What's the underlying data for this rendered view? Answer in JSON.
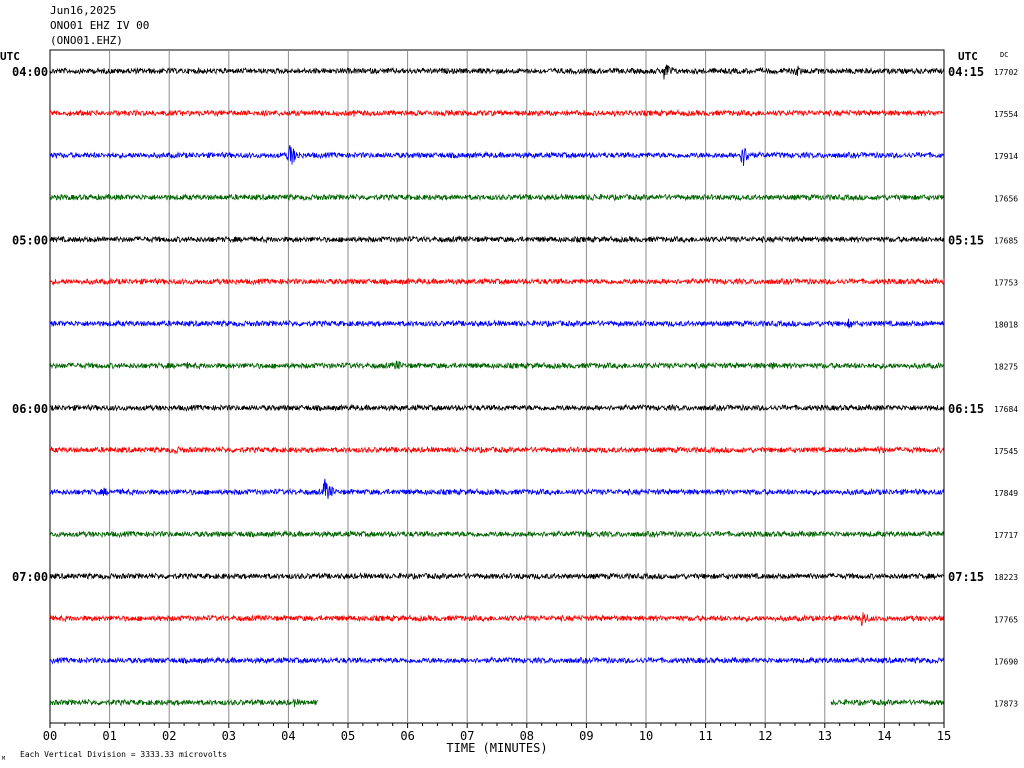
{
  "header": {
    "date": "Jun16,2025",
    "station": "ONO01 EHZ IV 00",
    "station_code": "(ONO01.EHZ)"
  },
  "chart_data": {
    "type": "line",
    "xlabel": "TIME (MINUTES)",
    "x_ticks": [
      "00",
      "01",
      "02",
      "03",
      "04",
      "05",
      "06",
      "07",
      "08",
      "09",
      "10",
      "11",
      "12",
      "13",
      "14",
      "15"
    ],
    "xlim": [
      0,
      15
    ],
    "left_axis_label": "UTC",
    "right_axis_label": "UTC",
    "dc_label": "DC",
    "footer_note": "Each Vertical Division = 3333.33 microvolts",
    "footer_mark": "M",
    "grid": true,
    "colors": [
      "#000000",
      "#ff0000",
      "#0000ff",
      "#006400"
    ],
    "left_time_labels": [
      {
        "row": 0,
        "label": "04:00"
      },
      {
        "row": 4,
        "label": "05:00"
      },
      {
        "row": 8,
        "label": "06:00"
      },
      {
        "row": 12,
        "label": "07:00"
      }
    ],
    "right_time_labels": [
      {
        "row": 0,
        "label": "04:15"
      },
      {
        "row": 4,
        "label": "05:15"
      },
      {
        "row": 8,
        "label": "06:15"
      },
      {
        "row": 12,
        "label": "07:15"
      }
    ],
    "traces": [
      {
        "dc": "17702",
        "events": [
          {
            "t": 10.3,
            "amp": 12
          },
          {
            "t": 12.5,
            "amp": 8
          },
          {
            "t": 13.5,
            "amp": 4
          }
        ]
      },
      {
        "dc": "17554",
        "events": [
          {
            "t": 5.1,
            "amp": 4
          }
        ]
      },
      {
        "dc": "17914",
        "events": [
          {
            "t": 1.5,
            "amp": 4
          },
          {
            "t": 4.0,
            "amp": 16
          },
          {
            "t": 6.8,
            "amp": 4
          },
          {
            "t": 11.6,
            "amp": 15
          }
        ]
      },
      {
        "dc": "17656",
        "events": [
          {
            "t": 0.8,
            "amp": 3
          },
          {
            "t": 9.1,
            "amp": 5
          }
        ]
      },
      {
        "dc": "17685",
        "events": [
          {
            "t": 8.8,
            "amp": 3
          }
        ]
      },
      {
        "dc": "17753",
        "events": [
          {
            "t": 1.5,
            "amp": 3
          },
          {
            "t": 7.9,
            "amp": 3
          },
          {
            "t": 13.1,
            "amp": 3
          },
          {
            "t": 14.9,
            "amp": 3
          }
        ]
      },
      {
        "dc": "18018",
        "events": [
          {
            "t": 8.0,
            "amp": 3
          },
          {
            "t": 13.4,
            "amp": 6
          }
        ]
      },
      {
        "dc": "18275",
        "events": [
          {
            "t": 2.3,
            "amp": 4
          },
          {
            "t": 5.8,
            "amp": 7
          },
          {
            "t": 12.1,
            "amp": 5
          }
        ]
      },
      {
        "dc": "17684",
        "events": [
          {
            "t": 0.9,
            "amp": 3
          },
          {
            "t": 4.0,
            "amp": 3
          }
        ]
      },
      {
        "dc": "17545",
        "events": [
          {
            "t": 2.1,
            "amp": 5
          },
          {
            "t": 6.0,
            "amp": 3
          },
          {
            "t": 13.9,
            "amp": 6
          }
        ]
      },
      {
        "dc": "17849",
        "events": [
          {
            "t": 0.9,
            "amp": 5
          },
          {
            "t": 1.2,
            "amp": 4
          },
          {
            "t": 4.6,
            "amp": 15
          },
          {
            "t": 7.6,
            "amp": 3
          },
          {
            "t": 12.4,
            "amp": 3
          },
          {
            "t": 13.5,
            "amp": 4
          }
        ]
      },
      {
        "dc": "17717",
        "events": [
          {
            "t": 9.0,
            "amp": 5
          },
          {
            "t": 9.7,
            "amp": 3
          }
        ]
      },
      {
        "dc": "18223",
        "events": [
          {
            "t": 2.9,
            "amp": 3
          },
          {
            "t": 7.9,
            "amp": 4
          }
        ]
      },
      {
        "dc": "17765",
        "events": [
          {
            "t": 2.2,
            "amp": 3
          },
          {
            "t": 7.5,
            "amp": 3
          },
          {
            "t": 13.6,
            "amp": 11
          }
        ]
      },
      {
        "dc": "17690",
        "events": [
          {
            "t": 3.8,
            "amp": 4
          },
          {
            "t": 10.9,
            "amp": 3
          }
        ]
      },
      {
        "dc": "17873",
        "events": [
          {
            "t": 0.3,
            "amp": 3
          },
          {
            "t": 4.1,
            "amp": 5
          },
          {
            "t": 13.7,
            "amp": 3
          }
        ],
        "gaps": [
          [
            4.5,
            13.1
          ]
        ]
      }
    ]
  }
}
